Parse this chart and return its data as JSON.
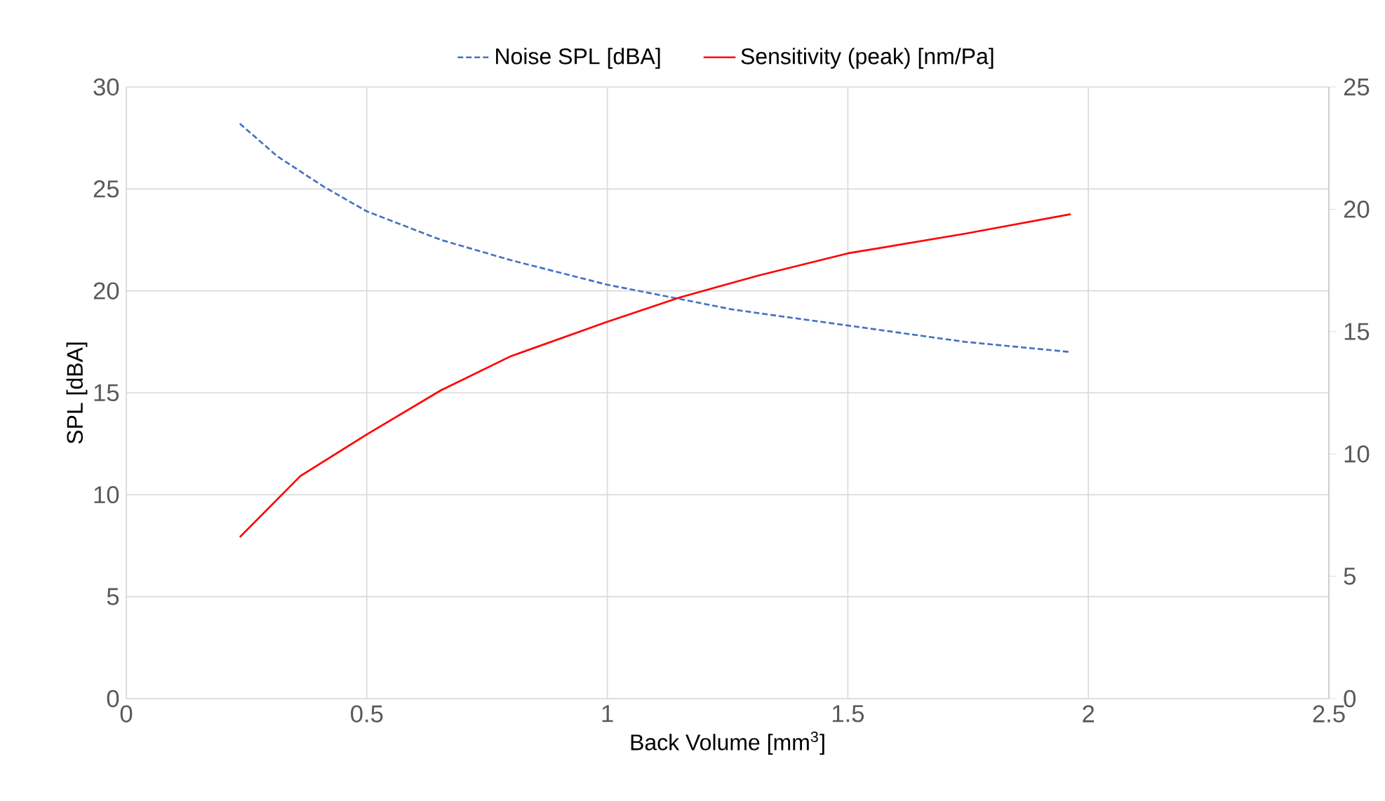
{
  "chart_data": {
    "type": "line",
    "xlabel": "Back Volume [mm$^{3}$]",
    "ylabel": "SPL  [dBA]",
    "xlim": [
      0,
      2.5
    ],
    "xticks": [
      0,
      0.5,
      1,
      1.5,
      2,
      2.5
    ],
    "ylim": [
      0,
      30
    ],
    "yticks": [
      0,
      5,
      10,
      15,
      20,
      25,
      30
    ],
    "y2lim": [
      0,
      25
    ],
    "y2ticks": [
      0,
      5,
      10,
      15,
      20,
      25
    ],
    "grid": true,
    "legend": "top",
    "series": [
      {
        "name": "Noise SPL [dBA]",
        "color": "#4472c4",
        "line_style": "dashed",
        "x": [
          0.236,
          0.314,
          0.411,
          0.5,
          0.654,
          0.8,
          1.0,
          1.151,
          1.257,
          1.316,
          1.5,
          1.743,
          1.963
        ],
        "values": [
          28.2,
          26.6,
          25.1,
          23.9,
          22.5,
          21.5,
          20.3,
          19.6,
          19.1,
          18.9,
          18.3,
          17.5,
          17.0
        ]
      },
      {
        "name": "Sensitivity (peak) [nm/Pa]",
        "color": "#ff0000",
        "line_style": "solid",
        "axis": "y2",
        "x": [
          0.236,
          0.362,
          0.5,
          0.654,
          0.8,
          1.0,
          1.151,
          1.316,
          1.5,
          1.743,
          1.963
        ],
        "values": [
          6.6,
          9.1,
          10.8,
          12.6,
          14.0,
          15.4,
          16.4,
          17.3,
          18.2,
          19.0,
          19.8
        ]
      }
    ]
  }
}
